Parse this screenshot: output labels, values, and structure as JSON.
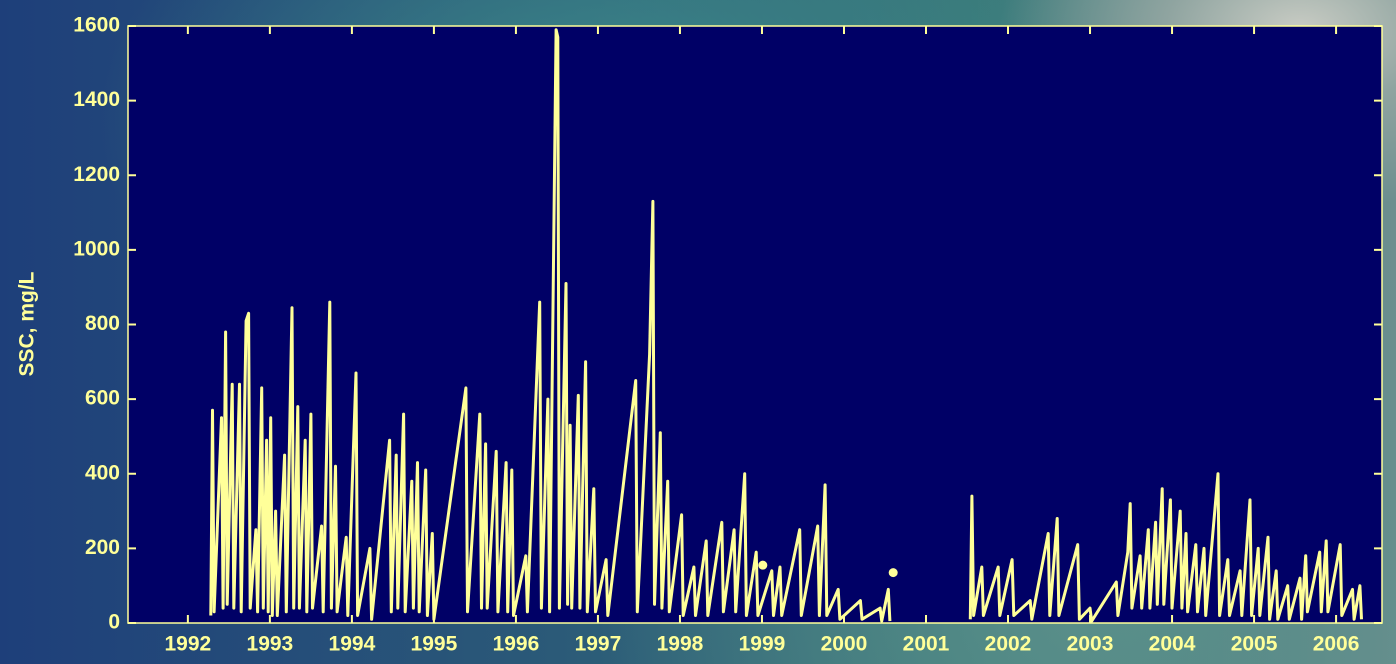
{
  "chart_data": {
    "type": "line",
    "y_label": "SSC, mg/L",
    "xlim": [
      1991.27,
      2006.56
    ],
    "xticks": [
      1992,
      1993,
      1994,
      1995,
      1996,
      1997,
      1998,
      1999,
      2000,
      2001,
      2002,
      2003,
      2004,
      2005,
      2006
    ],
    "ylim": [
      0,
      1600
    ],
    "yticks": [
      0,
      200,
      400,
      600,
      800,
      1000,
      1200,
      1400,
      1600
    ],
    "grid": false,
    "series": [
      {
        "style": "line",
        "color": "#ffff99",
        "x": [
          1992.28,
          1992.3,
          1992.32,
          1992.41,
          1992.43,
          1992.46,
          1992.48,
          1992.54,
          1992.56,
          1992.63,
          1992.65,
          1992.71,
          1992.74,
          1992.76,
          1992.83,
          1992.85,
          1992.9,
          1992.92,
          1992.96,
          1992.98,
          1993.01,
          1993.03,
          1993.07,
          1993.09,
          1993.18,
          1993.2,
          1993.27,
          1993.29,
          1993.34,
          1993.36,
          1993.43,
          1993.45,
          1993.5,
          1993.52,
          1993.63,
          1993.65,
          1993.73,
          1993.75,
          1993.8,
          1993.82,
          1993.93,
          1993.95,
          1994.05,
          1994.07,
          1994.22,
          1994.24,
          1994.46,
          1994.48,
          1994.54,
          1994.56,
          1994.63,
          1994.65,
          1994.73,
          1994.75,
          1994.8,
          1994.82,
          1994.9,
          1994.92,
          1994.98,
          1995.0,
          1995.39,
          1995.41,
          1995.56,
          1995.58,
          1995.63,
          1995.65,
          1995.76,
          1995.78,
          1995.88,
          1995.9,
          1995.95,
          1995.97,
          1996.12,
          1996.14,
          1996.29,
          1996.31,
          1996.39,
          1996.41,
          1996.49,
          1996.51,
          1996.53,
          1996.61,
          1996.63,
          1996.66,
          1996.68,
          1996.76,
          1996.78,
          1996.85,
          1996.87,
          1996.95,
          1996.97,
          1997.1,
          1997.12,
          1997.46,
          1997.48,
          1997.63,
          1997.67,
          1997.69,
          1997.76,
          1997.78,
          1997.85,
          1997.87,
          1998.02,
          1998.04,
          1998.17,
          1998.19,
          1998.32,
          1998.34,
          1998.51,
          1998.53,
          1998.66,
          1998.68,
          1998.79,
          1998.81,
          1998.93,
          1998.95,
          1999.12,
          1999.14,
          1999.22,
          1999.24,
          1999.46,
          1999.48,
          1999.68,
          1999.7,
          1999.77,
          1999.79,
          1999.93,
          1999.95,
          2000.2,
          2000.22,
          2000.44,
          2000.46,
          2000.54,
          2000.56,
          2001.0,
          2001.54,
          2001.56,
          2001.58,
          2001.68,
          2001.7,
          2001.88,
          2001.9,
          2002.05,
          2002.07,
          2002.27,
          2002.29,
          2002.49,
          2002.51,
          2002.6,
          2002.62,
          2002.85,
          2002.87,
          2003.0,
          2003.02,
          2003.32,
          2003.34,
          2003.46,
          2003.49,
          2003.51,
          2003.61,
          2003.63,
          2003.71,
          2003.73,
          2003.8,
          2003.82,
          2003.88,
          2003.9,
          2003.98,
          2004.0,
          2004.1,
          2004.12,
          2004.17,
          2004.19,
          2004.29,
          2004.31,
          2004.39,
          2004.41,
          2004.56,
          2004.58,
          2004.68,
          2004.7,
          2004.83,
          2004.85,
          2004.95,
          2004.97,
          2005.05,
          2005.07,
          2005.17,
          2005.19,
          2005.27,
          2005.29,
          2005.41,
          2005.43,
          2005.56,
          2005.58,
          2005.63,
          2005.65,
          2005.8,
          2005.82,
          2005.88,
          2005.9,
          2006.05,
          2006.07,
          2006.2,
          2006.22,
          2006.29,
          2006.31
        ],
        "values": [
          20,
          570,
          30,
          550,
          40,
          780,
          50,
          640,
          40,
          640,
          30,
          810,
          830,
          40,
          250,
          30,
          630,
          40,
          490,
          30,
          550,
          20,
          300,
          20,
          450,
          30,
          845,
          40,
          580,
          40,
          490,
          30,
          560,
          40,
          260,
          30,
          860,
          40,
          420,
          30,
          230,
          20,
          670,
          20,
          200,
          10,
          490,
          30,
          450,
          40,
          560,
          30,
          380,
          40,
          430,
          30,
          410,
          20,
          240,
          10,
          630,
          30,
          560,
          40,
          480,
          40,
          460,
          30,
          430,
          30,
          410,
          20,
          180,
          30,
          860,
          40,
          600,
          30,
          1590,
          1570,
          40,
          910,
          50,
          530,
          40,
          610,
          40,
          700,
          30,
          360,
          30,
          170,
          20,
          650,
          30,
          720,
          1130,
          50,
          510,
          40,
          380,
          30,
          290,
          20,
          150,
          20,
          220,
          20,
          270,
          30,
          250,
          30,
          400,
          20,
          190,
          20,
          140,
          20,
          150,
          20,
          250,
          20,
          260,
          20,
          370,
          20,
          90,
          10,
          60,
          10,
          40,
          5,
          90,
          5,
          null,
          10,
          340,
          20,
          150,
          20,
          150,
          20,
          170,
          20,
          60,
          10,
          240,
          20,
          280,
          20,
          210,
          10,
          40,
          5,
          110,
          20,
          190,
          320,
          40,
          180,
          40,
          250,
          40,
          270,
          50,
          360,
          50,
          330,
          40,
          300,
          40,
          240,
          30,
          210,
          30,
          200,
          20,
          400,
          20,
          170,
          20,
          140,
          20,
          330,
          20,
          200,
          20,
          230,
          10,
          140,
          10,
          100,
          10,
          120,
          10,
          180,
          30,
          190,
          30,
          220,
          30,
          210,
          20,
          90,
          10,
          100,
          10
        ]
      },
      {
        "style": "marker",
        "color": "#ffff99",
        "x": [
          1999.01,
          2000.6
        ],
        "values": [
          155,
          135
        ]
      }
    ]
  }
}
